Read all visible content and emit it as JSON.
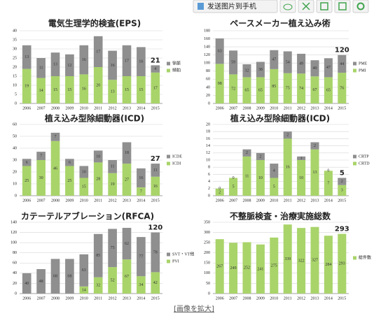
{
  "toolbar": {
    "send_button": "发送图片到手机"
  },
  "caption": "[画像を拡大]",
  "chart_data": [
    {
      "type": "stacked_bar",
      "title": "電気生理学的検査(EPS)",
      "categories": [
        "2006",
        "2007",
        "2008",
        "2009",
        "2010",
        "2011",
        "2012",
        "2013",
        "2014",
        "2015"
      ],
      "series": [
        {
          "name": "頻拍",
          "color": "#a9d46a",
          "values": [
            19,
            14,
            15,
            15,
            16,
            20,
            13,
            15,
            15,
            17
          ]
        },
        {
          "name": "徐脈",
          "color": "#8f8f8f",
          "values": [
            13,
            11,
            13,
            12,
            16,
            17,
            16,
            17,
            16,
            4
          ]
        }
      ],
      "ylim": [
        0,
        40
      ],
      "yticks": [
        0,
        5,
        10,
        15,
        20,
        25,
        30,
        35,
        40
      ],
      "grid": true,
      "annotation": "21"
    },
    {
      "type": "stacked_bar",
      "title": "ペースメーカー植え込み術",
      "categories": [
        "2006",
        "2007",
        "2008",
        "2009",
        "2010",
        "2011",
        "2012",
        "2013",
        "2014",
        "2015"
      ],
      "series": [
        {
          "name": "PMI",
          "color": "#a9d46a",
          "values": [
            98,
            72,
            65,
            65,
            85,
            75,
            74,
            67,
            65,
            76
          ]
        },
        {
          "name": "PME",
          "color": "#8f8f8f",
          "values": [
            63,
            59,
            32,
            38,
            47,
            54,
            49,
            40,
            47,
            44
          ]
        }
      ],
      "ylim": [
        0,
        180
      ],
      "yticks": [
        0,
        20,
        40,
        60,
        80,
        100,
        120,
        140,
        160,
        180
      ],
      "grid": true,
      "annotation": "120"
    },
    {
      "type": "stacked_bar",
      "title": "植え込み型除細動器(ICD)",
      "categories": [
        "2006",
        "2007",
        "2008",
        "2009",
        "2010",
        "2011",
        "2012",
        "2013",
        "2014",
        "2015"
      ],
      "series": [
        {
          "name": "ICDI",
          "color": "#a9d46a",
          "values": [
            25,
            30,
            46,
            25,
            15,
            28,
            19,
            27,
            7,
            16
          ]
        },
        {
          "name": "ICDE",
          "color": "#8f8f8f",
          "values": [
            6,
            7,
            7,
            6,
            10,
            10,
            11,
            18,
            16,
            11
          ]
        }
      ],
      "ylim": [
        0,
        60
      ],
      "yticks": [
        0,
        10,
        20,
        30,
        40,
        50,
        60
      ],
      "grid": true,
      "annotation": "27"
    },
    {
      "type": "stacked_bar",
      "title": "植え込み型除細動器(ICD)",
      "categories": [
        "2006",
        "2007",
        "2008",
        "2009",
        "2010",
        "2011",
        "2012",
        "2013",
        "2014",
        "2015"
      ],
      "series": [
        {
          "name": "CRTD",
          "color": "#a9d46a",
          "values": [
            2,
            5,
            11,
            10,
            5,
            16,
            10,
            13,
            7,
            3
          ]
        },
        {
          "name": "CRTP",
          "color": "#8f8f8f",
          "values": [
            0,
            0,
            2,
            2,
            4,
            2,
            1,
            2,
            0,
            2
          ]
        }
      ],
      "ylim": [
        0,
        20
      ],
      "yticks": [
        0,
        2,
        4,
        6,
        8,
        10,
        12,
        14,
        16,
        18,
        20
      ],
      "grid": true,
      "annotation": "5"
    },
    {
      "type": "stacked_bar",
      "title": "カテーテルアブレーション(RFCA)",
      "categories": [
        "2006",
        "2007",
        "2008",
        "2009",
        "2010",
        "2011",
        "2012",
        "2013",
        "2014",
        "2015"
      ],
      "series": [
        {
          "name": "PVI",
          "color": "#a9d46a",
          "values": [
            0,
            0,
            0,
            0,
            14,
            32,
            52,
            67,
            34,
            42
          ]
        },
        {
          "name": "SVT・VT他",
          "color": "#8f8f8f",
          "values": [
            40,
            48,
            68,
            68,
            63,
            85,
            75,
            62,
            77,
            78
          ]
        }
      ],
      "ylim": [
        0,
        140
      ],
      "yticks": [
        0,
        20,
        40,
        60,
        80,
        100,
        120,
        140
      ],
      "grid": true,
      "zero_labels": false,
      "annotation": "120"
    },
    {
      "type": "stacked_bar",
      "title": "不整脈検査・治療実施総数",
      "categories": [
        "2006",
        "2007",
        "2008",
        "2009",
        "2010",
        "2011",
        "2012",
        "2013",
        "2014",
        "2015"
      ],
      "series": [
        {
          "name": "総件数",
          "color": "#a9d46a",
          "values": [
            267,
            249,
            252,
            241,
            275,
            339,
            322,
            327,
            284,
            293
          ]
        }
      ],
      "ylim": [
        0,
        350
      ],
      "yticks": [
        0,
        50,
        100,
        150,
        200,
        250,
        300,
        350
      ],
      "grid": true,
      "annotation": "293"
    }
  ]
}
